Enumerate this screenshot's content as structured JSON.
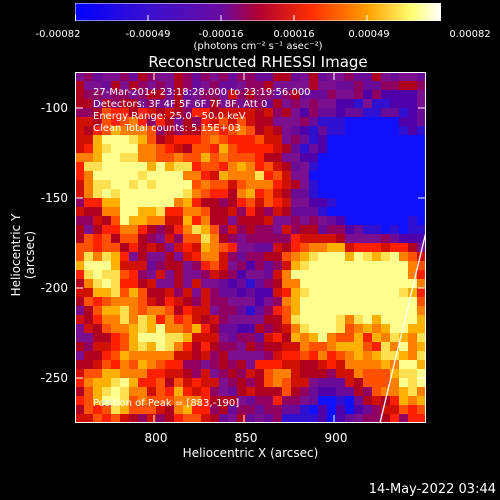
{
  "colorbar": {
    "ticks": [
      "-0.00082",
      "-0.00049",
      "-0.00016",
      "0.00016",
      "0.00049",
      "0.00082"
    ],
    "units": "(photons cm⁻² s⁻¹ asec⁻²)",
    "colors": [
      "#0000ff",
      "#4000c0",
      "#800080",
      "#c00020",
      "#ff4000",
      "#ffa000",
      "#ffff80",
      "#ffffff"
    ]
  },
  "title": "Reconstructed RHESSI Image",
  "info": {
    "time_range": "27-Mar-2014 23:18:28.000 to 23:19:56.000",
    "detectors": "Detectors: 3F 4F 5F 6F 7F 8F, Att 0",
    "energy": "Energy Range: 25.0 - 50.0 keV",
    "clean": "Clean   Total counts: 5.15E+03",
    "peak": "Position of Peak = [883,-190]"
  },
  "axes": {
    "xlabel": "Heliocentric X (arcsec)",
    "ylabel": "Heliocentric Y (arcsec)",
    "xticks": [
      "800",
      "850",
      "900"
    ],
    "yticks": [
      "-100",
      "-150",
      "-200",
      "-250"
    ]
  },
  "footer": {
    "date": "14-May-2022 03:44"
  }
}
